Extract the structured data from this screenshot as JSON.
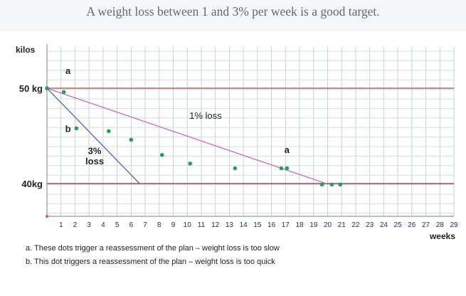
{
  "chart_data": {
    "type": "line",
    "title": "A weight loss between 1 and 3% per week is a good target.",
    "ylabel": "kilos",
    "xlabel": "weeks",
    "x_ticks": [
      1,
      2,
      3,
      4,
      5,
      6,
      7,
      8,
      9,
      10,
      11,
      12,
      13,
      14,
      15,
      16,
      17,
      18,
      19,
      20,
      21,
      22,
      23,
      24,
      25,
      26,
      27,
      28,
      29
    ],
    "y_tick_labels": [
      {
        "value": 50,
        "label": "50 kg"
      },
      {
        "value": 40,
        "label": "40kg"
      }
    ],
    "xlim": [
      0,
      29
    ],
    "grid": true,
    "reference_lines": [
      {
        "y": 50,
        "color": "#c0393b"
      },
      {
        "y": 40,
        "color": "#9b1e22"
      }
    ],
    "series": [
      {
        "name": "1% loss",
        "color": "#c869c0",
        "points": [
          [
            0,
            50
          ],
          [
            19.9,
            40
          ]
        ]
      },
      {
        "name": "3% loss",
        "color": "#4a6aa0",
        "points": [
          [
            0,
            50
          ],
          [
            6.6,
            40
          ]
        ]
      }
    ],
    "dots": {
      "color": "#22a15a",
      "points": [
        [
          0,
          50
        ],
        [
          1.2,
          49.6
        ],
        [
          2.1,
          45.8
        ],
        [
          4.4,
          45.5
        ],
        [
          6.0,
          44.6
        ],
        [
          8.2,
          43.0
        ],
        [
          10.2,
          42.1
        ],
        [
          13.4,
          41.6
        ],
        [
          16.7,
          41.6
        ],
        [
          17.1,
          41.6
        ],
        [
          19.6,
          39.9
        ],
        [
          20.3,
          39.9
        ],
        [
          20.9,
          39.9
        ]
      ]
    },
    "annotations": [
      {
        "text": "a",
        "x": 1.5,
        "y": 51.5
      },
      {
        "text": "b",
        "x": 1.5,
        "y": 45.4
      },
      {
        "text": "1% loss",
        "x": 11.3,
        "y": 46.8
      },
      {
        "text": "3%",
        "x": 3.4,
        "y": 43.1
      },
      {
        "text": "loss",
        "x": 3.4,
        "y": 42.0
      },
      {
        "text": "a",
        "x": 17.1,
        "y": 43.2
      }
    ]
  },
  "notes": [
    "a. These dots trigger a reassessment of the plan – weight loss is too slow",
    "b. This dot triggers a reassessment of the plan – weight loss is too quick"
  ]
}
